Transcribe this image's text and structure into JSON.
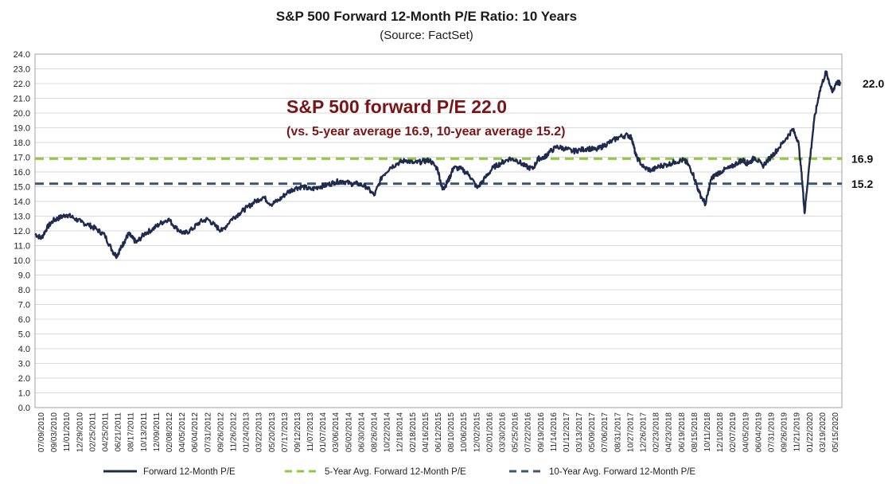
{
  "chart_data": {
    "type": "line",
    "title": "S&P 500 Forward 12-Month P/E Ratio: 10 Years",
    "subtitle": "(Source: FactSet)",
    "ylim": [
      0,
      24
    ],
    "y_ticks": [
      "0.0",
      "1.0",
      "2.0",
      "3.0",
      "4.0",
      "5.0",
      "6.0",
      "7.0",
      "8.0",
      "9.0",
      "10.0",
      "11.0",
      "12.0",
      "13.0",
      "14.0",
      "15.0",
      "16.0",
      "17.0",
      "18.0",
      "19.0",
      "20.0",
      "21.0",
      "22.0",
      "23.0",
      "24.0"
    ],
    "x_ticks": [
      "07/09/2010",
      "09/03/2010",
      "11/01/2010",
      "12/29/2010",
      "02/25/2011",
      "04/25/2011",
      "06/21/2011",
      "08/17/2011",
      "10/13/2011",
      "12/09/2011",
      "02/08/2012",
      "04/05/2012",
      "06/04/2012",
      "07/31/2012",
      "09/26/2012",
      "11/26/2012",
      "01/24/2013",
      "03/22/2013",
      "05/20/2013",
      "07/17/2013",
      "09/12/2013",
      "11/07/2013",
      "01/07/2014",
      "03/06/2014",
      "05/02/2014",
      "06/30/2014",
      "08/26/2014",
      "10/22/2014",
      "12/18/2014",
      "02/18/2015",
      "04/16/2015",
      "06/12/2015",
      "08/10/2015",
      "10/06/2015",
      "12/02/2015",
      "02/01/2016",
      "03/30/2016",
      "05/25/2016",
      "07/22/2016",
      "09/19/2016",
      "11/14/2016",
      "01/12/2017",
      "03/13/2017",
      "05/09/2017",
      "07/06/2017",
      "08/31/2017",
      "10/27/2017",
      "12/26/2017",
      "02/23/2018",
      "04/23/2018",
      "06/19/2018",
      "08/15/2018",
      "10/11/2018",
      "12/10/2018",
      "02/07/2019",
      "04/05/2019",
      "06/04/2019",
      "07/31/2019",
      "09/26/2019",
      "11/21/2019",
      "01/22/2020",
      "03/19/2020",
      "05/15/2020"
    ],
    "series": [
      {
        "name": "Forward 12-Month P/E",
        "color": "#1f2a4f",
        "x": [
          2010.52,
          2010.6,
          2010.67,
          2010.75,
          2010.83,
          2010.92,
          2011.0,
          2011.1,
          2011.2,
          2011.3,
          2011.4,
          2011.5,
          2011.55,
          2011.6,
          2011.65,
          2011.7,
          2011.75,
          2011.8,
          2011.9,
          2012.0,
          2012.1,
          2012.2,
          2012.3,
          2012.4,
          2012.5,
          2012.6,
          2012.7,
          2012.8,
          2012.88,
          2013.0,
          2013.1,
          2013.2,
          2013.3,
          2013.4,
          2013.5,
          2013.6,
          2013.7,
          2013.8,
          2013.9,
          2014.0,
          2014.1,
          2014.2,
          2014.3,
          2014.4,
          2014.5,
          2014.6,
          2014.7,
          2014.8,
          2014.9,
          2015.0,
          2015.1,
          2015.2,
          2015.3,
          2015.4,
          2015.5,
          2015.6,
          2015.66,
          2015.7,
          2015.75,
          2015.8,
          2015.9,
          2016.0,
          2016.1,
          2016.2,
          2016.3,
          2016.4,
          2016.5,
          2016.6,
          2016.7,
          2016.8,
          2016.87,
          2016.95,
          2017.0,
          2017.1,
          2017.2,
          2017.3,
          2017.4,
          2017.5,
          2017.6,
          2017.7,
          2017.8,
          2017.9,
          2018.0,
          2018.05,
          2018.1,
          2018.2,
          2018.3,
          2018.4,
          2018.5,
          2018.6,
          2018.7,
          2018.75,
          2018.82,
          2018.9,
          2018.98,
          2019.05,
          2019.1,
          2019.2,
          2019.3,
          2019.4,
          2019.45,
          2019.5,
          2019.55,
          2019.6,
          2019.7,
          2019.8,
          2019.9,
          2020.0,
          2020.08,
          2020.15,
          2020.2,
          2020.23,
          2020.28,
          2020.35,
          2020.42,
          2020.5,
          2020.53,
          2020.58,
          2020.63,
          2020.68
        ],
        "values": [
          11.8,
          11.5,
          12.2,
          12.7,
          12.9,
          13.1,
          12.9,
          12.6,
          12.4,
          12.1,
          11.7,
          10.6,
          10.3,
          10.8,
          11.3,
          11.8,
          11.5,
          11.2,
          11.8,
          12.1,
          12.5,
          12.8,
          12.2,
          11.8,
          12.1,
          12.6,
          12.8,
          12.3,
          12.0,
          12.8,
          13.2,
          13.6,
          14.0,
          14.3,
          13.8,
          14.1,
          14.6,
          14.9,
          15.0,
          14.8,
          15.0,
          15.1,
          15.3,
          15.4,
          15.2,
          15.2,
          15.0,
          14.4,
          15.7,
          16.3,
          16.6,
          16.8,
          16.6,
          16.7,
          16.8,
          16.2,
          14.8,
          15.1,
          15.6,
          16.3,
          16.2,
          15.8,
          14.9,
          15.6,
          16.3,
          16.6,
          16.9,
          16.8,
          16.4,
          16.2,
          16.9,
          17.0,
          17.3,
          17.7,
          17.6,
          17.4,
          17.5,
          17.6,
          17.5,
          17.8,
          18.1,
          18.4,
          18.5,
          18.3,
          17.1,
          16.3,
          16.1,
          16.4,
          16.5,
          16.7,
          16.8,
          16.6,
          15.9,
          14.6,
          13.8,
          15.5,
          15.8,
          16.1,
          16.3,
          16.7,
          16.8,
          16.6,
          16.7,
          17.0,
          16.4,
          17.0,
          17.6,
          18.3,
          18.9,
          18.1,
          15.4,
          13.2,
          16.0,
          19.5,
          21.5,
          22.8,
          22.3,
          21.4,
          22.1,
          22.0
        ]
      },
      {
        "name": "5-Year Avg. Forward 12-Month P/E",
        "color": "#92c83e",
        "value": 16.9
      },
      {
        "name": "10-Year Avg. Forward 12-Month P/E",
        "color": "#3b5577",
        "value": 15.2
      }
    ],
    "end_labels": {
      "current": "22.0",
      "avg5": "16.9",
      "avg10": "15.2"
    },
    "annotation": {
      "headline": "S&P 500 forward P/E 22.0",
      "detail": "(vs. 5-year average 16.9, 10-year average 15.2)",
      "color": "#7b1416"
    },
    "grid": true,
    "legend_position": "bottom"
  }
}
